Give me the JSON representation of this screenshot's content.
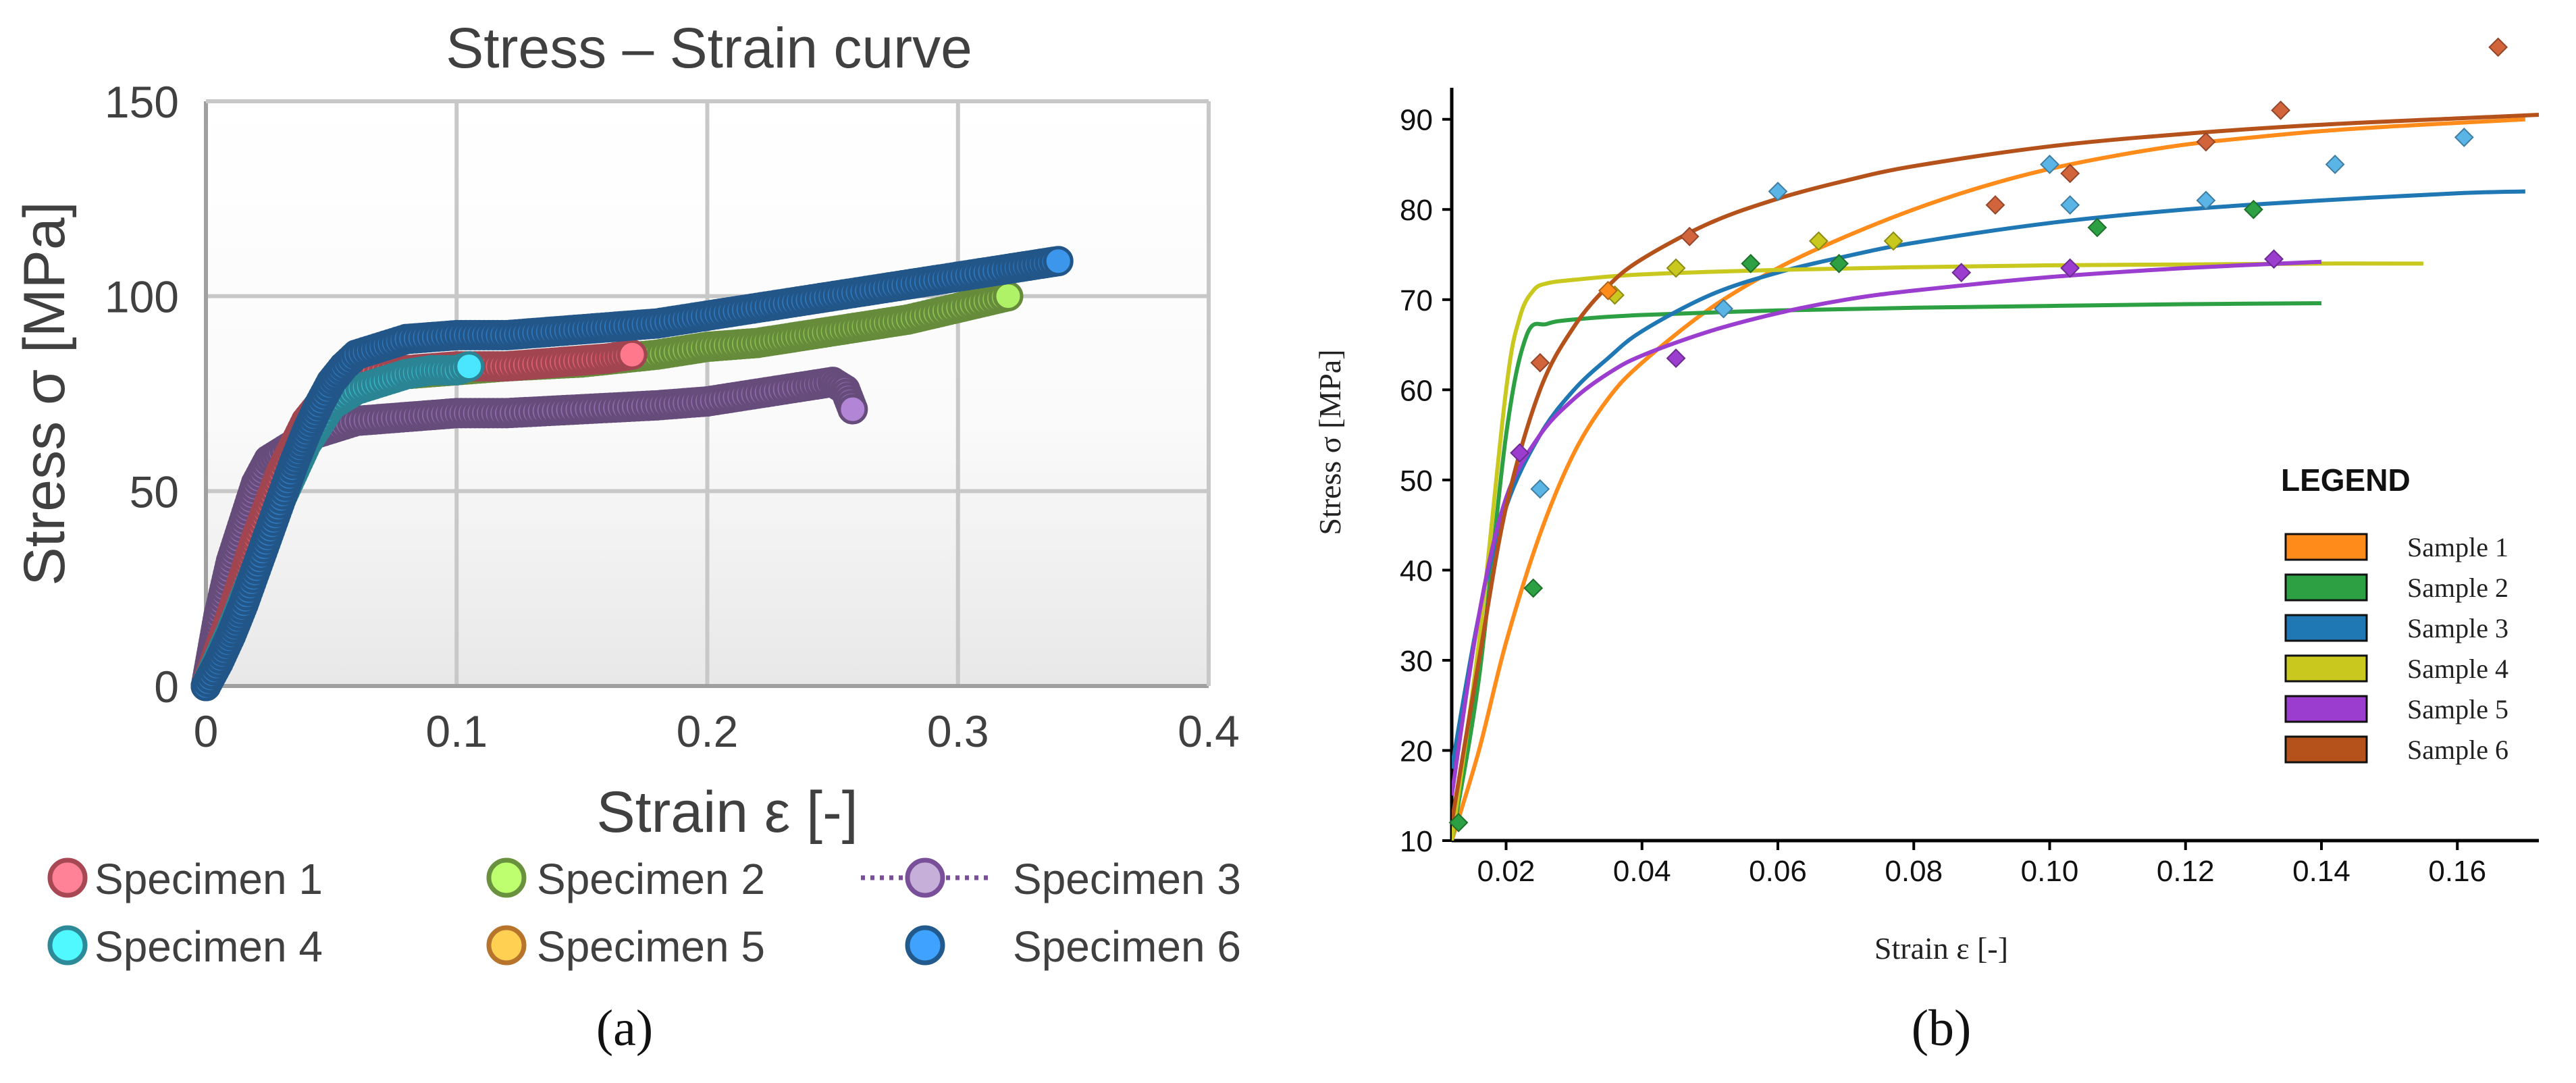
{
  "chart_data": [
    {
      "panel": "a",
      "panel_label": "(a)",
      "type": "scatter",
      "title": "Stress – Strain curve",
      "xlabel": "Strain ε [-]",
      "ylabel": "Stress σ [MPa]",
      "xlim": [
        0,
        0.4
      ],
      "ylim": [
        0,
        150
      ],
      "xticks": [
        0,
        0.1,
        0.2,
        0.3,
        0.4
      ],
      "yticks": [
        0,
        50,
        100,
        150
      ],
      "xtick_labels": [
        "0",
        "0.1",
        "0.2",
        "0.3",
        "0.4"
      ],
      "ytick_labels": [
        "0",
        "50",
        "100",
        "150"
      ],
      "grid": true,
      "legend_position": "bottom",
      "series": [
        {
          "name": "Specimen 1",
          "color": "#e06070",
          "marker": "circle",
          "line": "none",
          "x": [
            0,
            0.01,
            0.02,
            0.03,
            0.04,
            0.05,
            0.06,
            0.08,
            0.1,
            0.12,
            0.14,
            0.16,
            0.17
          ],
          "y": [
            0,
            18,
            38,
            55,
            68,
            76,
            80,
            81,
            82,
            82,
            83,
            84,
            85
          ]
        },
        {
          "name": "Specimen 2",
          "color": "#8cc152",
          "marker": "circle",
          "line": "none",
          "x": [
            0,
            0.01,
            0.02,
            0.03,
            0.04,
            0.05,
            0.06,
            0.07,
            0.08,
            0.1,
            0.12,
            0.15,
            0.18,
            0.2,
            0.22,
            0.25,
            0.28,
            0.3,
            0.32
          ],
          "y": [
            0,
            15,
            33,
            50,
            64,
            74,
            79,
            80,
            80,
            81,
            82,
            83,
            85,
            87,
            88,
            91,
            94,
            97,
            100
          ]
        },
        {
          "name": "Specimen 3",
          "color": "#8e6aab",
          "marker": "circle",
          "line": "dotted",
          "x": [
            0,
            0.005,
            0.01,
            0.015,
            0.02,
            0.025,
            0.03,
            0.04,
            0.05,
            0.06,
            0.08,
            0.1,
            0.12,
            0.15,
            0.18,
            0.2,
            0.22,
            0.24,
            0.25,
            0.255,
            0.258
          ],
          "y": [
            0,
            18,
            32,
            42,
            52,
            58,
            60,
            64,
            66,
            68,
            69,
            70,
            70,
            71,
            72,
            73,
            75,
            77,
            78,
            76,
            71
          ]
        },
        {
          "name": "Specimen 4",
          "color": "#3bb8cc",
          "marker": "circle",
          "line": "none",
          "x": [
            0,
            0.01,
            0.02,
            0.03,
            0.04,
            0.05,
            0.06,
            0.07,
            0.08,
            0.09,
            0.1,
            0.105
          ],
          "y": [
            0,
            14,
            30,
            48,
            62,
            72,
            76,
            78,
            80,
            81,
            81,
            82
          ]
        },
        {
          "name": "Specimen 5",
          "color": "#f39a3c",
          "marker": "circle",
          "line": "none",
          "x": [
            0,
            0.01,
            0.02,
            0.03,
            0.04,
            0.05,
            0.06
          ],
          "y": [
            0,
            15,
            33,
            50,
            64,
            74,
            79
          ]
        },
        {
          "name": "Specimen 6",
          "color": "#2f78bd",
          "marker": "circle",
          "line": "none",
          "x": [
            0,
            0.005,
            0.01,
            0.015,
            0.02,
            0.025,
            0.03,
            0.035,
            0.04,
            0.045,
            0.05,
            0.055,
            0.06,
            0.07,
            0.08,
            0.1,
            0.12,
            0.14,
            0.16,
            0.18,
            0.2,
            0.22,
            0.24,
            0.26,
            0.28,
            0.3,
            0.32,
            0.33,
            0.34
          ],
          "y": [
            0,
            6,
            13,
            21,
            30,
            39,
            48,
            57,
            65,
            72,
            78,
            82,
            85,
            87,
            89,
            90,
            90,
            91,
            92,
            93,
            95,
            97,
            99,
            101,
            103,
            105,
            107,
            108,
            109
          ]
        }
      ]
    },
    {
      "panel": "b",
      "panel_label": "(b)",
      "type": "line",
      "title": "",
      "xlabel": "Strain ε [-]",
      "ylabel": "Stress σ [MPa]",
      "xlim": [
        0.012,
        0.172
      ],
      "ylim": [
        10,
        92
      ],
      "xticks": [
        0.02,
        0.04,
        0.06,
        0.08,
        0.1,
        0.12,
        0.14,
        0.16
      ],
      "yticks": [
        10,
        20,
        30,
        40,
        50,
        60,
        70,
        80,
        90
      ],
      "xtick_labels": [
        "0.02",
        "0.04",
        "0.06",
        "0.08",
        "0.10",
        "0.12",
        "0.14",
        "0.16"
      ],
      "ytick_labels": [
        "10",
        "20",
        "30",
        "40",
        "50",
        "60",
        "70",
        "80",
        "90"
      ],
      "grid": false,
      "legend_title": "LEGEND",
      "legend_position": "right",
      "series": [
        {
          "name": "Sample 1",
          "color": "#ff8c1a",
          "x": [
            0.012,
            0.016,
            0.02,
            0.025,
            0.03,
            0.035,
            0.04,
            0.05,
            0.06,
            0.07,
            0.08,
            0.09,
            0.1,
            0.11,
            0.12,
            0.13,
            0.14,
            0.15,
            0.16,
            0.17
          ],
          "y": [
            10,
            20,
            32,
            44,
            53,
            59,
            63,
            69,
            73.5,
            77,
            80,
            82.5,
            84.5,
            86,
            87.2,
            88,
            88.7,
            89.2,
            89.6,
            90
          ]
        },
        {
          "name": "Sample 2",
          "color": "#2ca042",
          "x": [
            0.012,
            0.016,
            0.02,
            0.023,
            0.026,
            0.03,
            0.04,
            0.06,
            0.08,
            0.1,
            0.12,
            0.14
          ],
          "y": [
            10,
            28,
            55,
            66,
            67.3,
            67.8,
            68.3,
            68.8,
            69.1,
            69.3,
            69.5,
            69.6
          ]
        },
        {
          "name": "Sample 3",
          "color": "#1f77b4",
          "x": [
            0.012,
            0.016,
            0.02,
            0.025,
            0.03,
            0.035,
            0.04,
            0.05,
            0.06,
            0.07,
            0.08,
            0.1,
            0.12,
            0.14,
            0.16,
            0.17
          ],
          "y": [
            18,
            35,
            47,
            55,
            60,
            63.5,
            66.5,
            70.5,
            73,
            74.8,
            76.3,
            78.5,
            80,
            81,
            81.8,
            82
          ]
        },
        {
          "name": "Sample 4",
          "color": "#c8c81e",
          "x": [
            0.012,
            0.016,
            0.02,
            0.022,
            0.024,
            0.026,
            0.03,
            0.04,
            0.06,
            0.08,
            0.1,
            0.12,
            0.14,
            0.155
          ],
          "y": [
            10,
            32,
            60,
            68,
            71,
            71.8,
            72.2,
            72.8,
            73.3,
            73.6,
            73.8,
            73.9,
            74,
            74
          ]
        },
        {
          "name": "Sample 5",
          "color": "#9b3dcf",
          "x": [
            0.012,
            0.016,
            0.02,
            0.025,
            0.03,
            0.035,
            0.04,
            0.05,
            0.06,
            0.07,
            0.08,
            0.1,
            0.12,
            0.14
          ],
          "y": [
            15,
            35,
            48,
            55,
            59,
            61.8,
            63.8,
            66.5,
            68.5,
            70,
            71,
            72.5,
            73.5,
            74.2
          ]
        },
        {
          "name": "Sample 6",
          "color": "#b5521b",
          "x": [
            0.012,
            0.016,
            0.02,
            0.025,
            0.03,
            0.035,
            0.04,
            0.05,
            0.06,
            0.07,
            0.08,
            0.1,
            0.12,
            0.14,
            0.16,
            0.172
          ],
          "y": [
            12,
            30,
            47,
            60,
            67,
            71.5,
            74.5,
            78.5,
            81.2,
            83.2,
            84.8,
            87,
            88.4,
            89.4,
            90.1,
            90.5
          ]
        }
      ],
      "experimental_points": [
        {
          "sample": "Sample 6",
          "color": "#d2643c",
          "x": [
            0.025,
            0.047,
            0.092,
            0.103,
            0.123,
            0.134,
            0.166
          ],
          "y": [
            63,
            77,
            80.5,
            84,
            87.5,
            91,
            98
          ]
        },
        {
          "sample": "Sample 3",
          "color": "#5bb4e6",
          "x": [
            0.025,
            0.052,
            0.06,
            0.1,
            0.103,
            0.123,
            0.142,
            0.161
          ],
          "y": [
            49,
            69,
            82,
            85,
            80.5,
            81,
            85,
            88
          ]
        },
        {
          "sample": "Sample 2",
          "color": "#2ca042",
          "x": [
            0.013,
            0.024,
            0.056,
            0.069,
            0.107,
            0.13
          ],
          "y": [
            12,
            38,
            74,
            74,
            78,
            80
          ]
        },
        {
          "sample": "Sample 5",
          "color": "#9b3dcf",
          "x": [
            0.022,
            0.045,
            0.087,
            0.103,
            0.133
          ],
          "y": [
            53,
            63.5,
            73,
            73.5,
            74.5
          ]
        },
        {
          "sample": "Sample 4",
          "color": "#c8c81e",
          "x": [
            0.036,
            0.045,
            0.066,
            0.077
          ],
          "y": [
            70.5,
            73.5,
            76.5,
            76.5
          ]
        },
        {
          "sample": "Sample 1",
          "color": "#ff8c1a",
          "x": [
            0.035
          ],
          "y": [
            71
          ]
        }
      ]
    }
  ]
}
